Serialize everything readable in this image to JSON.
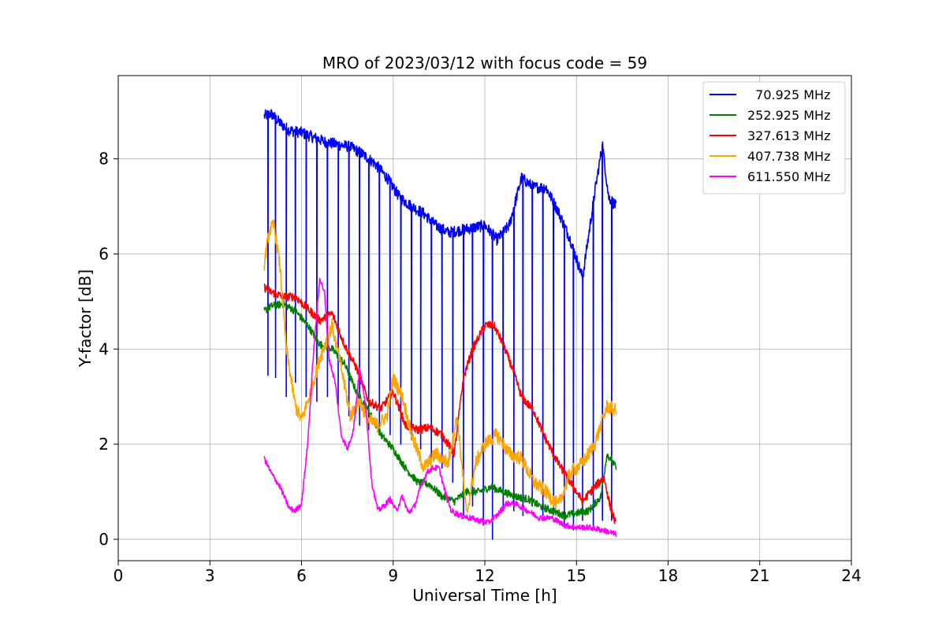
{
  "chart_data": {
    "type": "line",
    "title": "MRO of 2023/03/12 with focus code = 59",
    "xlabel": "Universal Time [h]",
    "ylabel": "Y-factor [dB]",
    "xlim": [
      0,
      24
    ],
    "ylim": [
      -0.45,
      9.75
    ],
    "xticks": [
      0,
      3,
      6,
      9,
      12,
      15,
      18,
      21,
      24
    ],
    "yticks": [
      0,
      2,
      4,
      6,
      8
    ],
    "grid": true,
    "legend_position": "top-right",
    "series": [
      {
        "name": "  70.925 MHz",
        "color": "#0000ff",
        "x": [
          4.78,
          5.0,
          5.3,
          5.6,
          6.0,
          6.4,
          6.8,
          7.2,
          7.6,
          8.0,
          8.4,
          8.8,
          9.2,
          9.6,
          10.0,
          10.4,
          10.8,
          11.2,
          11.6,
          12.0,
          12.4,
          12.8,
          13.2,
          13.6,
          14.0,
          14.4,
          14.8,
          15.2,
          15.6,
          15.85,
          16.05,
          16.3
        ],
        "y": [
          8.9,
          8.95,
          8.75,
          8.6,
          8.55,
          8.45,
          8.35,
          8.3,
          8.25,
          8.1,
          7.9,
          7.6,
          7.2,
          7.0,
          6.85,
          6.6,
          6.45,
          6.5,
          6.55,
          6.6,
          6.3,
          6.6,
          7.6,
          7.4,
          7.4,
          6.9,
          6.3,
          5.5,
          7.3,
          8.3,
          7.2,
          7.0
        ],
        "dips": [
          {
            "x": 4.9,
            "y": 3.45
          },
          {
            "x": 5.15,
            "y": 3.4
          },
          {
            "x": 5.5,
            "y": 3.0
          },
          {
            "x": 5.8,
            "y": 3.3
          },
          {
            "x": 6.15,
            "y": 3.0
          },
          {
            "x": 6.5,
            "y": 2.9
          },
          {
            "x": 6.85,
            "y": 3.0
          },
          {
            "x": 7.2,
            "y": 2.8
          },
          {
            "x": 7.55,
            "y": 2.6
          },
          {
            "x": 7.9,
            "y": 2.4
          },
          {
            "x": 8.2,
            "y": 2.3
          },
          {
            "x": 8.55,
            "y": 2.3
          },
          {
            "x": 8.9,
            "y": 2.2
          },
          {
            "x": 9.25,
            "y": 2.0
          },
          {
            "x": 9.6,
            "y": 2.1
          },
          {
            "x": 9.9,
            "y": 1.9
          },
          {
            "x": 10.25,
            "y": 1.7
          },
          {
            "x": 10.6,
            "y": 1.5
          },
          {
            "x": 10.95,
            "y": 1.2
          },
          {
            "x": 11.3,
            "y": 0.5
          },
          {
            "x": 11.6,
            "y": 0.7
          },
          {
            "x": 11.95,
            "y": 0.3
          },
          {
            "x": 12.25,
            "y": 0.0
          },
          {
            "x": 12.6,
            "y": 0.6
          },
          {
            "x": 12.95,
            "y": 0.6
          },
          {
            "x": 13.25,
            "y": 0.5
          },
          {
            "x": 13.55,
            "y": 0.7
          },
          {
            "x": 13.9,
            "y": 0.5
          },
          {
            "x": 14.25,
            "y": 0.6
          },
          {
            "x": 14.6,
            "y": 0.3
          },
          {
            "x": 14.9,
            "y": 0.2
          },
          {
            "x": 15.2,
            "y": 0.4
          },
          {
            "x": 15.55,
            "y": 0.3
          },
          {
            "x": 15.85,
            "y": 0.4
          },
          {
            "x": 16.15,
            "y": 0.4
          }
        ]
      },
      {
        "name": "252.925 MHz",
        "color": "#008000",
        "x": [
          4.78,
          5.0,
          5.4,
          5.8,
          6.2,
          6.6,
          7.0,
          7.4,
          7.8,
          8.2,
          8.6,
          9.0,
          9.4,
          9.8,
          10.2,
          10.6,
          11.0,
          11.4,
          11.8,
          12.2,
          12.6,
          13.0,
          13.4,
          13.8,
          14.2,
          14.6,
          15.0,
          15.4,
          15.8,
          16.0,
          16.3
        ],
        "y": [
          4.8,
          4.9,
          4.95,
          4.8,
          4.5,
          4.1,
          4.0,
          3.7,
          3.1,
          2.7,
          2.2,
          1.9,
          1.5,
          1.2,
          1.15,
          0.9,
          0.8,
          1.0,
          1.0,
          1.1,
          1.0,
          0.9,
          0.85,
          0.7,
          0.6,
          0.5,
          0.55,
          0.6,
          0.9,
          1.8,
          1.5
        ]
      },
      {
        "name": "327.613 MHz",
        "color": "#ff0000",
        "x": [
          4.78,
          5.0,
          5.4,
          5.8,
          6.2,
          6.6,
          7.0,
          7.4,
          7.8,
          8.2,
          8.6,
          9.0,
          9.4,
          9.8,
          10.2,
          10.6,
          11.0,
          11.3,
          11.6,
          12.0,
          12.3,
          12.6,
          12.9,
          13.2,
          13.6,
          14.0,
          14.4,
          14.8,
          15.2,
          15.6,
          15.9,
          16.1,
          16.3
        ],
        "y": [
          5.3,
          5.2,
          5.1,
          5.1,
          4.85,
          4.6,
          4.75,
          4.1,
          3.6,
          2.9,
          2.75,
          3.1,
          2.4,
          2.3,
          2.35,
          2.2,
          1.8,
          3.4,
          4.0,
          4.5,
          4.5,
          4.1,
          3.6,
          3.0,
          2.7,
          2.1,
          1.6,
          1.2,
          0.8,
          1.1,
          1.3,
          0.7,
          0.3
        ]
      },
      {
        "name": "407.738 MHz",
        "color": "#ffa500",
        "x": [
          4.78,
          4.95,
          5.1,
          5.3,
          5.5,
          5.8,
          6.0,
          6.3,
          6.6,
          7.0,
          7.3,
          7.6,
          7.9,
          8.2,
          8.5,
          8.8,
          9.0,
          9.3,
          9.6,
          10.0,
          10.4,
          10.8,
          11.1,
          11.4,
          11.7,
          12.0,
          12.4,
          12.8,
          13.2,
          13.6,
          14.0,
          14.4,
          14.8,
          15.2,
          15.6,
          16.0,
          16.3
        ],
        "y": [
          5.8,
          6.5,
          6.6,
          5.7,
          4.0,
          2.8,
          2.5,
          3.1,
          3.8,
          4.5,
          3.6,
          2.6,
          2.9,
          2.5,
          2.4,
          2.6,
          3.4,
          3.0,
          2.2,
          1.5,
          1.8,
          1.6,
          2.6,
          0.5,
          1.6,
          2.0,
          2.2,
          1.8,
          1.7,
          1.2,
          1.0,
          0.7,
          1.4,
          1.6,
          2.0,
          2.8,
          2.7
        ]
      },
      {
        "name": "611.550 MHz",
        "color": "#ff00ff",
        "x": [
          4.78,
          5.0,
          5.3,
          5.6,
          5.8,
          6.0,
          6.2,
          6.4,
          6.6,
          6.75,
          6.9,
          7.1,
          7.3,
          7.5,
          7.7,
          7.9,
          8.1,
          8.3,
          8.5,
          8.7,
          8.9,
          9.1,
          9.3,
          9.5,
          9.7,
          9.9,
          10.1,
          10.3,
          10.5,
          10.7,
          10.9,
          11.2,
          11.5,
          11.8,
          12.1,
          12.4,
          12.7,
          13.0,
          13.4,
          13.8,
          14.2,
          14.6,
          15.0,
          15.4,
          15.8,
          16.1,
          16.3
        ],
        "y": [
          1.7,
          1.4,
          1.1,
          0.65,
          0.6,
          0.75,
          2.0,
          4.0,
          5.5,
          5.2,
          3.8,
          3.3,
          2.2,
          1.9,
          2.3,
          3.6,
          2.8,
          1.2,
          0.6,
          0.7,
          0.85,
          0.6,
          0.9,
          0.55,
          0.7,
          1.1,
          1.4,
          1.5,
          1.5,
          1.0,
          0.6,
          0.5,
          0.45,
          0.4,
          0.35,
          0.5,
          0.75,
          0.75,
          0.6,
          0.45,
          0.45,
          0.3,
          0.25,
          0.25,
          0.2,
          0.15,
          0.1
        ]
      }
    ]
  }
}
